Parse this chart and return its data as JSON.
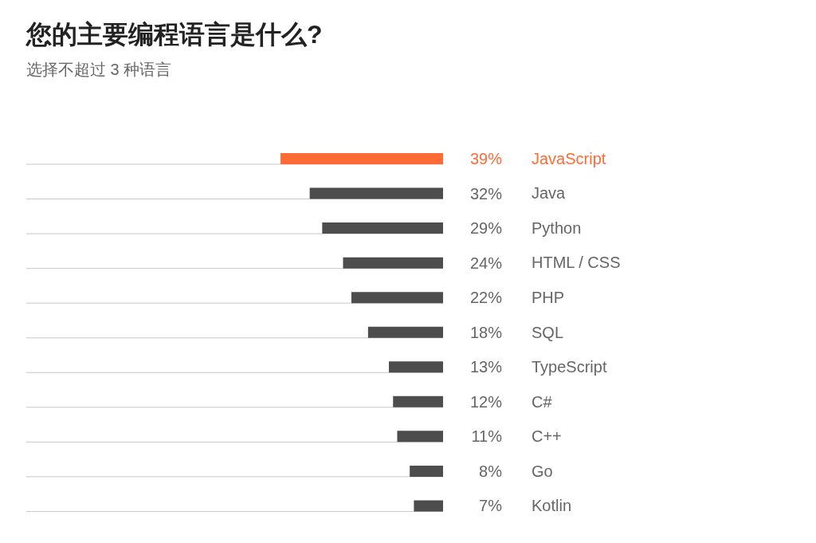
{
  "chart_data": {
    "type": "bar",
    "orientation": "horizontal",
    "title": "您的主要编程语言是什么?",
    "subtitle": "选择不超过 3 种语言",
    "categories": [
      "JavaScript",
      "Java",
      "Python",
      "HTML / CSS",
      "PHP",
      "SQL",
      "TypeScript",
      "C#",
      "C++",
      "Go",
      "Kotlin"
    ],
    "values": [
      39,
      32,
      29,
      24,
      22,
      18,
      13,
      12,
      11,
      8,
      7
    ],
    "value_labels": [
      "39%",
      "32%",
      "29%",
      "24%",
      "22%",
      "18%",
      "13%",
      "12%",
      "11%",
      "8%",
      "7%"
    ],
    "color": "#4d4d4d",
    "colors": [
      "#ff6b35",
      "#4d4d4d",
      "#4d4d4d",
      "#4d4d4d",
      "#4d4d4d",
      "#4d4d4d",
      "#4d4d4d",
      "#4d4d4d",
      "#4d4d4d",
      "#4d4d4d",
      "#4d4d4d"
    ],
    "xlim": [
      100,
      0
    ]
  }
}
